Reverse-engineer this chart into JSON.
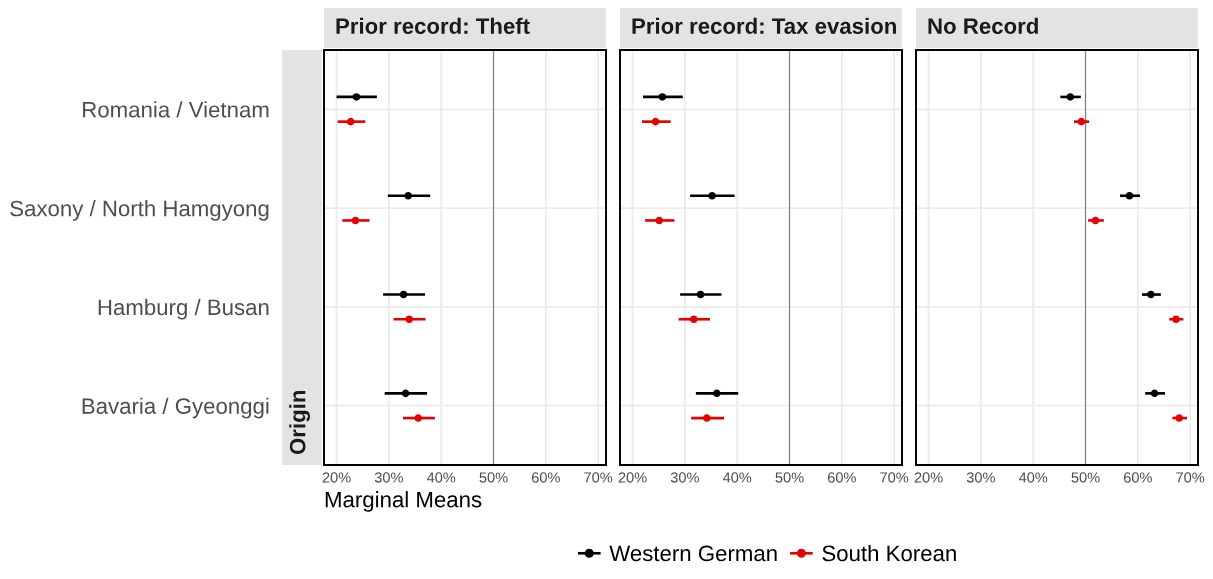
{
  "chart_data": [
    {
      "type": "scatter",
      "orientation": "horizontal",
      "title": "Prior record: Theft",
      "xlabel": "Marginal Means",
      "ylabel": "Origin",
      "categories": [
        "Romania / Vietnam",
        "Saxony / North Hamgyong",
        "Hamburg / Busan",
        "Bavaria / Gyeonggi"
      ],
      "series": [
        {
          "name": "Western German",
          "color": "#000000",
          "values": [
            23.8,
            33.7,
            32.8,
            33.2
          ],
          "errors": [
            [
              20.0,
              27.7
            ],
            [
              29.8,
              37.9
            ],
            [
              28.9,
              36.9
            ],
            [
              29.2,
              37.3
            ]
          ]
        },
        {
          "name": "South Korean",
          "color": "#e60000",
          "values": [
            22.7,
            23.6,
            33.9,
            35.6
          ],
          "errors": [
            [
              20.2,
              25.5
            ],
            [
              21.1,
              26.3
            ],
            [
              30.9,
              37.0
            ],
            [
              32.7,
              38.8
            ]
          ]
        }
      ],
      "xlim": [
        17.6,
        71.5
      ],
      "xticks": [
        {
          "value": 20,
          "label": "20%"
        },
        {
          "value": 30,
          "label": "30%"
        },
        {
          "value": 40,
          "label": "40%"
        },
        {
          "value": 50,
          "label": "50%"
        },
        {
          "value": 60,
          "label": "60%"
        },
        {
          "value": 70,
          "label": "70%"
        }
      ],
      "ref_lines": [
        {
          "axis": "x",
          "value": 50,
          "color": "#7f7f7f"
        }
      ],
      "grid": true,
      "marker": "circle",
      "legend": "bottom"
    },
    {
      "type": "scatter",
      "orientation": "horizontal",
      "title": "Prior record: Tax evasion",
      "categories": [
        null,
        null,
        null,
        null
      ],
      "series": [
        {
          "color": "#000000",
          "values": [
            25.7,
            35.2,
            33.0,
            36.1
          ],
          "errors": [
            [
              22.0,
              29.6
            ],
            [
              31.0,
              39.5
            ],
            [
              29.1,
              37.0
            ],
            [
              32.1,
              40.2
            ]
          ]
        },
        {
          "color": "#e60000",
          "values": [
            24.4,
            25.1,
            31.7,
            34.2
          ],
          "errors": [
            [
              21.8,
              27.3
            ],
            [
              22.4,
              28.0
            ],
            [
              28.8,
              34.8
            ],
            [
              31.2,
              37.5
            ]
          ]
        }
      ],
      "xlim": [
        17.6,
        71.5
      ],
      "xticks": [
        {
          "value": 20,
          "label": "20%"
        },
        {
          "value": 30,
          "label": "30%"
        },
        {
          "value": 40,
          "label": "40%"
        },
        {
          "value": 50,
          "label": "50%"
        },
        {
          "value": 60,
          "label": "60%"
        },
        {
          "value": 70,
          "label": "70%"
        }
      ],
      "ref_lines": [
        {
          "axis": "x",
          "value": 50,
          "color": "#7f7f7f"
        }
      ],
      "grid": true,
      "marker": "circle",
      "tick_labels": "x"
    },
    {
      "type": "scatter",
      "orientation": "horizontal",
      "title": "No Record",
      "categories": [
        null,
        null,
        null,
        null
      ],
      "series": [
        {
          "color": "#000000",
          "values": [
            47.1,
            58.4,
            62.5,
            63.2
          ],
          "errors": [
            [
              45.2,
              49.1
            ],
            [
              56.6,
              60.4
            ],
            [
              60.8,
              64.4
            ],
            [
              61.4,
              65.2
            ]
          ]
        },
        {
          "color": "#e60000",
          "values": [
            49.2,
            51.9,
            67.3,
            67.9
          ],
          "errors": [
            [
              47.8,
              50.7
            ],
            [
              50.5,
              53.5
            ],
            [
              66.0,
              68.7
            ],
            [
              66.6,
              69.4
            ]
          ]
        }
      ],
      "xlim": [
        17.6,
        71.5
      ],
      "xticks": [
        {
          "value": 20,
          "label": "20%"
        },
        {
          "value": 30,
          "label": "30%"
        },
        {
          "value": 40,
          "label": "40%"
        },
        {
          "value": 50,
          "label": "50%"
        },
        {
          "value": 60,
          "label": "60%"
        },
        {
          "value": 70,
          "label": "70%"
        }
      ],
      "ref_lines": [
        {
          "axis": "x",
          "value": 50,
          "color": "#7f7f7f"
        }
      ],
      "grid": true,
      "marker": "circle",
      "tick_labels": "x"
    }
  ]
}
